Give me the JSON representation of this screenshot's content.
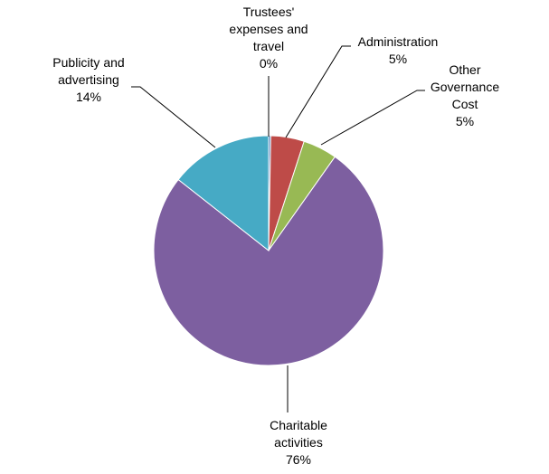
{
  "chart_data": {
    "type": "pie",
    "slices": [
      {
        "label_lines": [
          "Trustees'",
          "expenses and",
          "travel"
        ],
        "percent_label": "0%",
        "value": 0.3,
        "color": "#4A7EBB"
      },
      {
        "label_lines": [
          "Administration"
        ],
        "percent_label": "5%",
        "value": 4.7,
        "color": "#BE4B48"
      },
      {
        "label_lines": [
          "Other",
          "Governance",
          "Cost"
        ],
        "percent_label": "5%",
        "value": 4.8,
        "color": "#98B954"
      },
      {
        "label_lines": [
          "Charitable",
          "activities"
        ],
        "percent_label": "76%",
        "value": 75.8,
        "color": "#7D5FA0"
      },
      {
        "label_lines": [
          "Publicity and",
          "advertising"
        ],
        "percent_label": "14%",
        "value": 14.4,
        "color": "#46AAC5"
      }
    ],
    "legend": false,
    "start_angle": "12 o'clock",
    "direction": "clockwise"
  }
}
